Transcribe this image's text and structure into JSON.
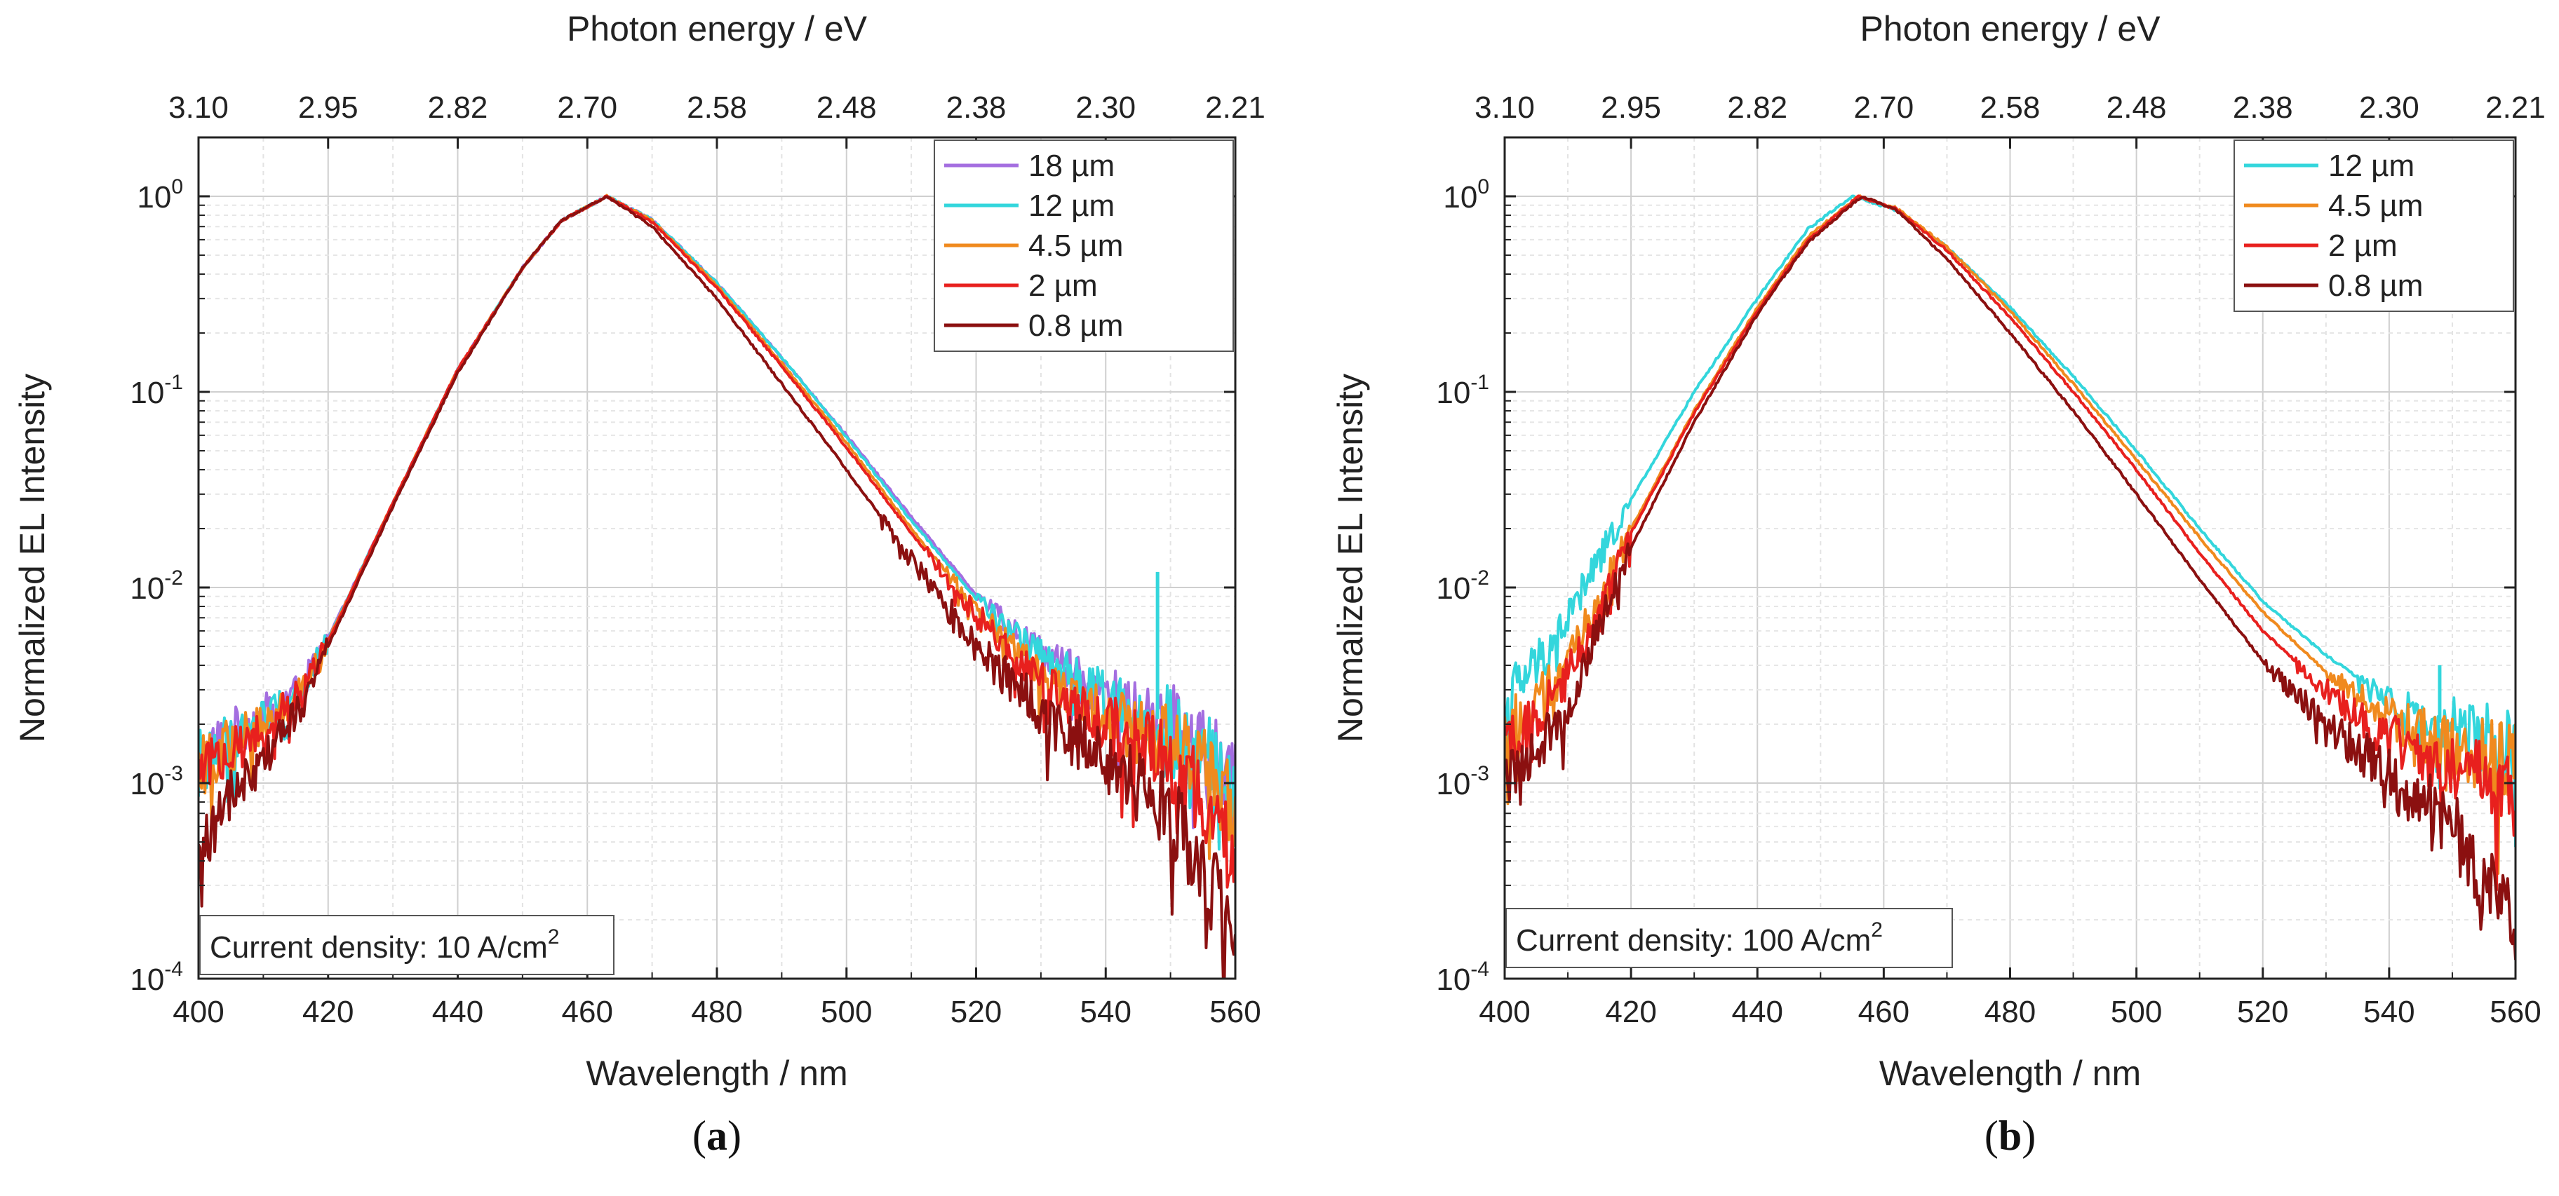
{
  "chart_data": [
    {
      "type": "line",
      "panel_label_prefix": "(",
      "panel_label_letter": "a",
      "panel_label_suffix": ")",
      "xlabel": "Wavelength / nm",
      "ylabel": "Normalized EL Intensity",
      "top_xlabel": "Photon energy / eV",
      "xlim": [
        400,
        560
      ],
      "ylim": [
        0.0001,
        2
      ],
      "yscale": "log",
      "x_ticks": [
        {
          "value": 400,
          "label": "400"
        },
        {
          "value": 420,
          "label": "420"
        },
        {
          "value": 440,
          "label": "440"
        },
        {
          "value": 460,
          "label": "460"
        },
        {
          "value": 480,
          "label": "480"
        },
        {
          "value": 500,
          "label": "500"
        },
        {
          "value": 520,
          "label": "520"
        },
        {
          "value": 540,
          "label": "540"
        },
        {
          "value": 560,
          "label": "560"
        }
      ],
      "top_ticks": [
        {
          "value": 400,
          "label": "3.10"
        },
        {
          "value": 420,
          "label": "2.95"
        },
        {
          "value": 440,
          "label": "2.82"
        },
        {
          "value": 460,
          "label": "2.70"
        },
        {
          "value": 480,
          "label": "2.58"
        },
        {
          "value": 500,
          "label": "2.48"
        },
        {
          "value": 520,
          "label": "2.38"
        },
        {
          "value": 540,
          "label": "2.30"
        },
        {
          "value": 560,
          "label": "2.21"
        }
      ],
      "y_ticks": [
        {
          "value": 0.0001,
          "base": "10",
          "exp": "-4"
        },
        {
          "value": 0.001,
          "base": "10",
          "exp": "-3"
        },
        {
          "value": 0.01,
          "base": "10",
          "exp": "-2"
        },
        {
          "value": 0.1,
          "base": "10",
          "exp": "-1"
        },
        {
          "value": 1,
          "base": "10",
          "exp": "0"
        }
      ],
      "grid": true,
      "legend_position": "top-right",
      "annotation": {
        "text": "Current density: 10 A/cm",
        "sup": "2",
        "position": "bottom-left"
      },
      "series": [
        {
          "name": "18 µm",
          "color": "#a46ee0",
          "peak": 463.5,
          "wl": 14.2,
          "wr": 20.0,
          "noise_start": 520,
          "noise_end": 560,
          "points": [
            [
              400,
              0.0013
            ],
            [
              404,
              0.0017
            ],
            [
              410,
              0.0022
            ],
            [
              416,
              0.0031
            ],
            [
              420,
              0.0055
            ],
            [
              430,
              0.027
            ],
            [
              440,
              0.13
            ],
            [
              450,
              0.43
            ],
            [
              456,
              0.75
            ],
            [
              463,
              1.0
            ],
            [
              470,
              0.76
            ],
            [
              480,
              0.36
            ],
            [
              490,
              0.15
            ],
            [
              500,
              0.06
            ],
            [
              510,
              0.023
            ],
            [
              520,
              0.0092
            ],
            [
              530,
              0.0047
            ],
            [
              540,
              0.0028
            ],
            [
              550,
              0.0021
            ],
            [
              556,
              0.0014
            ],
            [
              560,
              0.0009
            ]
          ]
        },
        {
          "name": "12 µm",
          "color": "#33d6dc",
          "peak": 463.5,
          "wl": 14.2,
          "wr": 20.0,
          "noise_start": 520,
          "noise_end": 560,
          "spike_x": 548,
          "spike_y": 0.012,
          "points": [
            [
              400,
              0.0013
            ],
            [
              404,
              0.0016
            ],
            [
              410,
              0.0021
            ],
            [
              416,
              0.003
            ],
            [
              420,
              0.0054
            ],
            [
              430,
              0.027
            ],
            [
              440,
              0.13
            ],
            [
              450,
              0.43
            ],
            [
              456,
              0.75
            ],
            [
              463,
              1.0
            ],
            [
              470,
              0.76
            ],
            [
              480,
              0.36
            ],
            [
              490,
              0.15
            ],
            [
              500,
              0.059
            ],
            [
              510,
              0.022
            ],
            [
              520,
              0.0088
            ],
            [
              530,
              0.0045
            ],
            [
              540,
              0.0027
            ],
            [
              550,
              0.002
            ],
            [
              556,
              0.0013
            ],
            [
              560,
              0.0008
            ]
          ]
        },
        {
          "name": "4.5 µm",
          "color": "#f08a1e",
          "peak": 463.5,
          "wl": 14.2,
          "wr": 19.5,
          "noise_start": 515,
          "noise_end": 560,
          "points": [
            [
              400,
              0.0012
            ],
            [
              404,
              0.0015
            ],
            [
              410,
              0.002
            ],
            [
              416,
              0.003
            ],
            [
              420,
              0.0054
            ],
            [
              430,
              0.027
            ],
            [
              440,
              0.13
            ],
            [
              450,
              0.43
            ],
            [
              456,
              0.75
            ],
            [
              463,
              1.0
            ],
            [
              470,
              0.75
            ],
            [
              480,
              0.35
            ],
            [
              490,
              0.14
            ],
            [
              500,
              0.055
            ],
            [
              510,
              0.02
            ],
            [
              520,
              0.0078
            ],
            [
              530,
              0.0037
            ],
            [
              540,
              0.0022
            ],
            [
              550,
              0.0016
            ],
            [
              556,
              0.0011
            ],
            [
              560,
              0.0007
            ]
          ]
        },
        {
          "name": "2 µm",
          "color": "#e8201e",
          "peak": 463.5,
          "wl": 14.2,
          "wr": 19.2,
          "noise_start": 512,
          "noise_end": 560,
          "points": [
            [
              400,
              0.0011
            ],
            [
              404,
              0.0014
            ],
            [
              410,
              0.0019
            ],
            [
              416,
              0.0029
            ],
            [
              420,
              0.0053
            ],
            [
              430,
              0.027
            ],
            [
              440,
              0.13
            ],
            [
              450,
              0.43
            ],
            [
              456,
              0.75
            ],
            [
              463,
              1.0
            ],
            [
              470,
              0.74
            ],
            [
              480,
              0.34
            ],
            [
              490,
              0.135
            ],
            [
              500,
              0.052
            ],
            [
              510,
              0.019
            ],
            [
              520,
              0.0072
            ],
            [
              530,
              0.0034
            ],
            [
              540,
              0.002
            ],
            [
              550,
              0.0013
            ],
            [
              556,
              0.0008
            ],
            [
              560,
              0.0005
            ]
          ]
        },
        {
          "name": "0.8 µm",
          "color": "#8b1010",
          "peak": 463.0,
          "wl": 14.0,
          "wr": 18.0,
          "noise_start": 505,
          "noise_end": 560,
          "points": [
            [
              400,
              0.0004
            ],
            [
              404,
              0.0008
            ],
            [
              410,
              0.0013
            ],
            [
              416,
              0.0025
            ],
            [
              420,
              0.005
            ],
            [
              430,
              0.026
            ],
            [
              440,
              0.125
            ],
            [
              450,
              0.43
            ],
            [
              456,
              0.75
            ],
            [
              463,
              1.0
            ],
            [
              470,
              0.7
            ],
            [
              480,
              0.3
            ],
            [
              490,
              0.11
            ],
            [
              500,
              0.04
            ],
            [
              510,
              0.014
            ],
            [
              520,
              0.005
            ],
            [
              530,
              0.0023
            ],
            [
              540,
              0.0013
            ],
            [
              550,
              0.0007
            ],
            [
              556,
              0.0003
            ],
            [
              560,
              0.00015
            ]
          ]
        }
      ]
    },
    {
      "type": "line",
      "panel_label_prefix": "(",
      "panel_label_letter": "b",
      "panel_label_suffix": ")",
      "xlabel": "Wavelength / nm",
      "ylabel": "Normalized EL Intensity",
      "top_xlabel": "Photon energy / eV",
      "xlim": [
        400,
        560
      ],
      "ylim": [
        0.0001,
        2
      ],
      "yscale": "log",
      "x_ticks": [
        {
          "value": 400,
          "label": "400"
        },
        {
          "value": 420,
          "label": "420"
        },
        {
          "value": 440,
          "label": "440"
        },
        {
          "value": 460,
          "label": "460"
        },
        {
          "value": 480,
          "label": "480"
        },
        {
          "value": 500,
          "label": "500"
        },
        {
          "value": 520,
          "label": "520"
        },
        {
          "value": 540,
          "label": "540"
        },
        {
          "value": 560,
          "label": "560"
        }
      ],
      "top_ticks": [
        {
          "value": 400,
          "label": "3.10"
        },
        {
          "value": 420,
          "label": "2.95"
        },
        {
          "value": 440,
          "label": "2.82"
        },
        {
          "value": 460,
          "label": "2.70"
        },
        {
          "value": 480,
          "label": "2.58"
        },
        {
          "value": 500,
          "label": "2.48"
        },
        {
          "value": 520,
          "label": "2.38"
        },
        {
          "value": 540,
          "label": "2.30"
        },
        {
          "value": 560,
          "label": "2.21"
        }
      ],
      "y_ticks": [
        {
          "value": 0.0001,
          "base": "10",
          "exp": "-4"
        },
        {
          "value": 0.001,
          "base": "10",
          "exp": "-3"
        },
        {
          "value": 0.01,
          "base": "10",
          "exp": "-2"
        },
        {
          "value": 0.1,
          "base": "10",
          "exp": "-1"
        },
        {
          "value": 1,
          "base": "10",
          "exp": "0"
        }
      ],
      "grid": true,
      "legend_position": "top-right",
      "annotation": {
        "text": "Current density: 100 A/cm",
        "sup": "2",
        "position": "bottom-left"
      },
      "series": [
        {
          "name": "12 µm",
          "color": "#33d6dc",
          "peak": 455.0,
          "wl": 17.0,
          "wr": 22.0,
          "noise_start": 535,
          "noise_end": 560,
          "spike_x": 548,
          "spike_y": 0.004,
          "points": [
            [
              400,
              0.0027
            ],
            [
              405,
              0.004
            ],
            [
              410,
              0.007
            ],
            [
              420,
              0.028
            ],
            [
              430,
              0.1
            ],
            [
              440,
              0.3
            ],
            [
              448,
              0.68
            ],
            [
              455,
              1.0
            ],
            [
              462,
              0.85
            ],
            [
              470,
              0.55
            ],
            [
              480,
              0.27
            ],
            [
              490,
              0.12
            ],
            [
              500,
              0.05
            ],
            [
              510,
              0.02
            ],
            [
              520,
              0.0085
            ],
            [
              530,
              0.0045
            ],
            [
              540,
              0.0027
            ],
            [
              550,
              0.0019
            ],
            [
              560,
              0.0014
            ]
          ]
        },
        {
          "name": "4.5 µm",
          "color": "#f08a1e",
          "peak": 456.0,
          "wl": 15.5,
          "wr": 21.5,
          "noise_start": 530,
          "noise_end": 560,
          "points": [
            [
              400,
              0.0018
            ],
            [
              405,
              0.0025
            ],
            [
              410,
              0.004
            ],
            [
              420,
              0.02
            ],
            [
              430,
              0.08
            ],
            [
              440,
              0.27
            ],
            [
              448,
              0.62
            ],
            [
              456,
              1.0
            ],
            [
              462,
              0.87
            ],
            [
              470,
              0.55
            ],
            [
              480,
              0.26
            ],
            [
              490,
              0.11
            ],
            [
              500,
              0.045
            ],
            [
              510,
              0.018
            ],
            [
              520,
              0.0075
            ],
            [
              530,
              0.0037
            ],
            [
              540,
              0.0022
            ],
            [
              550,
              0.0015
            ],
            [
              560,
              0.0012
            ]
          ]
        },
        {
          "name": "2 µm",
          "color": "#e8201e",
          "peak": 456.0,
          "wl": 15.5,
          "wr": 20.5,
          "noise_start": 525,
          "noise_end": 560,
          "points": [
            [
              400,
              0.0016
            ],
            [
              405,
              0.0022
            ],
            [
              410,
              0.0035
            ],
            [
              420,
              0.019
            ],
            [
              430,
              0.078
            ],
            [
              440,
              0.26
            ],
            [
              448,
              0.6
            ],
            [
              456,
              1.0
            ],
            [
              462,
              0.86
            ],
            [
              470,
              0.53
            ],
            [
              480,
              0.24
            ],
            [
              490,
              0.1
            ],
            [
              500,
              0.04
            ],
            [
              510,
              0.015
            ],
            [
              520,
              0.006
            ],
            [
              530,
              0.003
            ],
            [
              540,
              0.0017
            ],
            [
              550,
              0.0012
            ],
            [
              560,
              0.0008
            ]
          ]
        },
        {
          "name": "0.8 µm",
          "color": "#8b1010",
          "peak": 456.5,
          "wl": 15.0,
          "wr": 19.0,
          "noise_start": 520,
          "noise_end": 560,
          "points": [
            [
              400,
              0.001
            ],
            [
              405,
              0.0015
            ],
            [
              410,
              0.0025
            ],
            [
              420,
              0.016
            ],
            [
              430,
              0.07
            ],
            [
              440,
              0.25
            ],
            [
              448,
              0.58
            ],
            [
              456.5,
              1.0
            ],
            [
              462,
              0.85
            ],
            [
              470,
              0.48
            ],
            [
              480,
              0.2
            ],
            [
              490,
              0.08
            ],
            [
              500,
              0.03
            ],
            [
              510,
              0.011
            ],
            [
              520,
              0.0042
            ],
            [
              530,
              0.002
            ],
            [
              540,
              0.0011
            ],
            [
              550,
              0.0006
            ],
            [
              560,
              0.0002
            ]
          ]
        }
      ]
    }
  ]
}
